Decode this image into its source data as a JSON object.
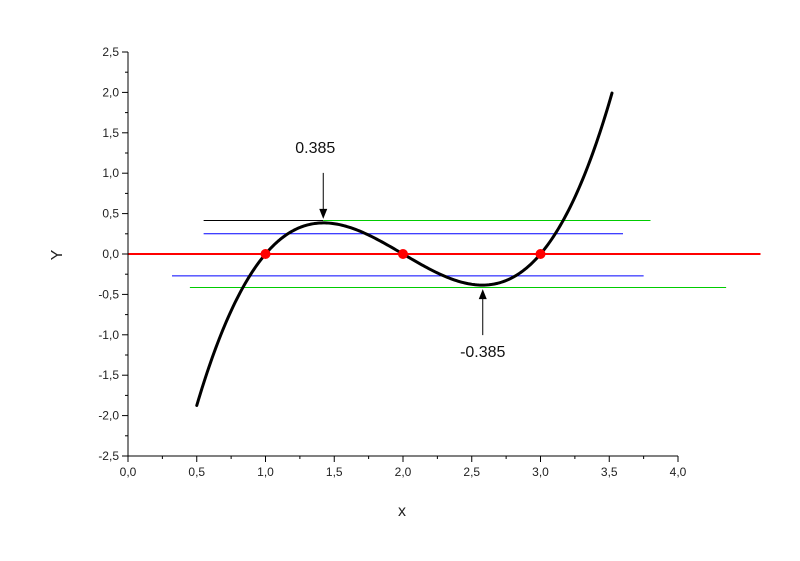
{
  "chart_data": {
    "type": "line",
    "title": "",
    "xlabel": "x",
    "ylabel": "Y",
    "xlim": [
      0.0,
      4.0
    ],
    "ylim": [
      -2.5,
      2.5
    ],
    "x_ticks": [
      "0,0",
      "0,5",
      "1,0",
      "1,5",
      "2,0",
      "2,5",
      "3,0",
      "3,5",
      "4,0"
    ],
    "y_ticks": [
      "-2,5",
      "-2,0",
      "-1,5",
      "-1,0",
      "-0,5",
      "0,0",
      "0,5",
      "1,0",
      "1,5",
      "2,0",
      "2,5"
    ],
    "grid": false,
    "curve": {
      "name": "",
      "color": "#000000",
      "x_range": [
        0.5,
        3.52
      ],
      "polynomial_coefficients": [
        1,
        -6,
        11,
        -6
      ]
    },
    "zero_line": {
      "y": 0.0,
      "x_range": [
        0.0,
        4.6
      ],
      "color": "#ff0000"
    },
    "roots": [
      {
        "x": 1.0,
        "y": 0.0
      },
      {
        "x": 2.0,
        "y": 0.0
      },
      {
        "x": 3.0,
        "y": 0.0
      }
    ],
    "root_color": "#ff0000",
    "reference_lines": [
      {
        "y": 0.415,
        "x_range": [
          0.55,
          1.42
        ],
        "color": "#000000"
      },
      {
        "y": 0.415,
        "x_range": [
          1.42,
          3.8
        ],
        "color": "#00cc00"
      },
      {
        "y": 0.25,
        "x_range": [
          0.55,
          3.6
        ],
        "color": "#0000ff"
      },
      {
        "y": -0.27,
        "x_range": [
          0.32,
          3.75
        ],
        "color": "#0000ff"
      },
      {
        "y": -0.415,
        "x_range": [
          0.45,
          4.35
        ],
        "color": "#00cc00"
      }
    ],
    "annotations": [
      {
        "text": "0.385",
        "x": 1.42,
        "y": 0.385,
        "arrow_direction": "down"
      },
      {
        "text": "-0.385",
        "x": 2.58,
        "y": -0.385,
        "arrow_direction": "up"
      }
    ]
  }
}
